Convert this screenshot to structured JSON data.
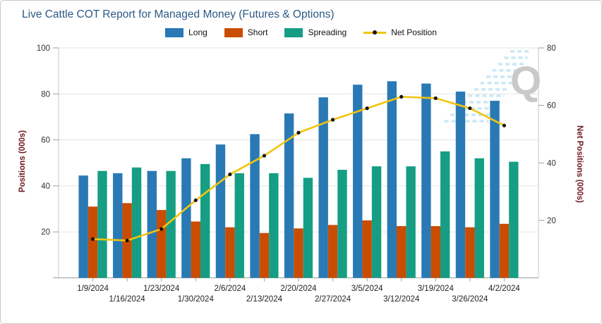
{
  "window": {
    "title": "Live Cattle COT Report for Managed Money (Futures & Options)"
  },
  "legend": [
    {
      "label": "Long",
      "color": "#2979b5",
      "glyph": "swatch"
    },
    {
      "label": "Short",
      "color": "#c94c03",
      "glyph": "swatch"
    },
    {
      "label": "Spreading",
      "color": "#169e84",
      "glyph": "swatch"
    },
    {
      "label": "Net Position",
      "color": "#f2c40e",
      "marker_color": "#111111",
      "glyph": "line"
    }
  ],
  "watermark": {
    "letter": "Q",
    "letter_color": "#c9c9c9",
    "stripe_color": "#bfe2f2"
  },
  "chart_data": {
    "type": "bar",
    "title": "Live Cattle COT Report for Managed Money (Futures & Options)",
    "title_color": "#2c5985",
    "categories": [
      "1/9/2024",
      "1/16/2024",
      "1/23/2024",
      "1/30/2024",
      "2/6/2024",
      "2/13/2024",
      "2/20/2024",
      "2/27/2024",
      "3/5/2024",
      "3/12/2024",
      "3/19/2024",
      "3/26/2024",
      "4/2/2024"
    ],
    "series": [
      {
        "name": "Long",
        "type": "bar",
        "axis": "left",
        "color": "#2979b5",
        "values": [
          44.5,
          45.5,
          46.5,
          52,
          58,
          62.5,
          71.5,
          78.5,
          84,
          85.5,
          84.5,
          81,
          77
        ]
      },
      {
        "name": "Short",
        "type": "bar",
        "axis": "left",
        "color": "#c94c03",
        "values": [
          31,
          32.5,
          29.5,
          24.5,
          22,
          19.5,
          21.5,
          23,
          25,
          22.5,
          22.5,
          22,
          23.5
        ]
      },
      {
        "name": "Spreading",
        "type": "bar",
        "axis": "left",
        "color": "#169e84",
        "values": [
          46.5,
          48,
          46.5,
          49.5,
          45.5,
          45.5,
          43.5,
          47,
          48.5,
          48.5,
          55,
          52,
          50.5
        ]
      },
      {
        "name": "Net Position",
        "type": "line",
        "axis": "right",
        "color": "#f2c40e",
        "marker_color": "#111111",
        "values": [
          13.5,
          13,
          17,
          27,
          36,
          42.5,
          50.5,
          55,
          59,
          63,
          62.5,
          59,
          53
        ]
      }
    ],
    "left_axis": {
      "label": "Positions (000s)",
      "min": 0,
      "max": 100,
      "ticks": [
        20,
        40,
        60,
        80,
        100
      ]
    },
    "right_axis": {
      "label": "Net Positions (000s)",
      "min": 0,
      "max": 80,
      "ticks": [
        20,
        40,
        60,
        80
      ]
    },
    "axis_title_color": "#70161e",
    "tick_label_color": "#333333",
    "grid": true,
    "gridline_color": "#e3e3e3",
    "legend_position": "top",
    "x_labels_staggered": true
  }
}
